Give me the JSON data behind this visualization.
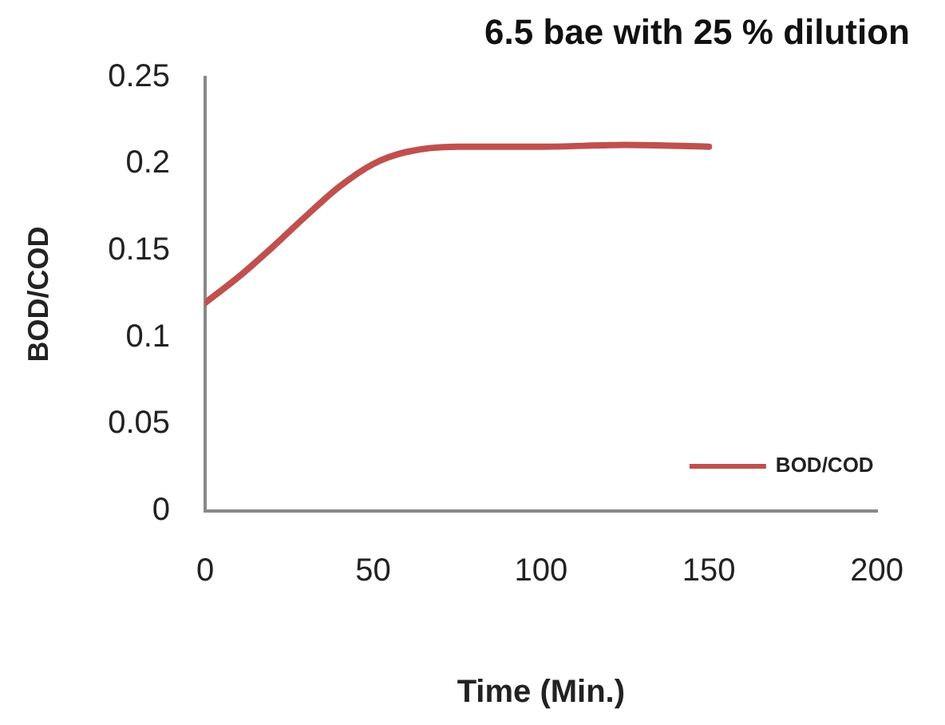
{
  "chart_data": {
    "type": "line",
    "title": "6.5 bae with 25 % dilution",
    "xlabel": "Time (Min.)",
    "ylabel": "BOD/COD",
    "x": [
      0,
      10,
      20,
      30,
      40,
      50,
      60,
      75,
      100,
      125,
      150
    ],
    "series": [
      {
        "name": "BOD/COD",
        "color": "#c0504d",
        "values": [
          0.12,
          0.135,
          0.152,
          0.17,
          0.187,
          0.2,
          0.207,
          0.21,
          0.21,
          0.211,
          0.21
        ]
      }
    ],
    "xlim": [
      0,
      200
    ],
    "xticks": [
      0,
      50,
      100,
      150,
      200
    ],
    "ylim": [
      0,
      0.25
    ],
    "yticks": [
      0,
      0.05,
      0.1,
      0.15,
      0.2,
      0.25
    ],
    "grid": false,
    "legend": "bottom right",
    "marker": "none",
    "line_style": "solid"
  }
}
